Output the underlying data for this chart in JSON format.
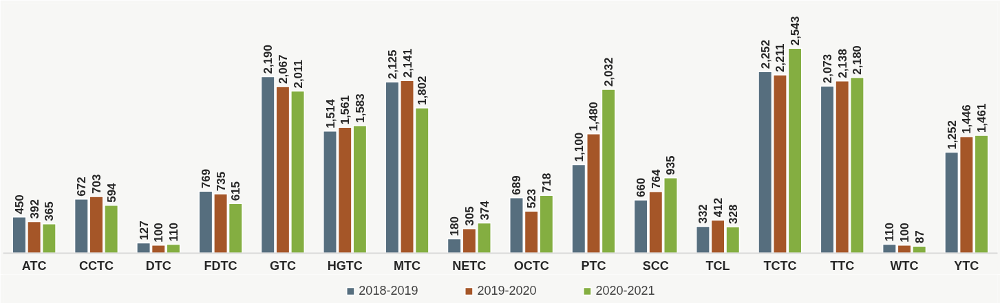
{
  "chart_data": {
    "type": "bar",
    "categories": [
      "ATC",
      "CCTC",
      "DTC",
      "FDTC",
      "GTC",
      "HGTC",
      "MTC",
      "NETC",
      "OCTC",
      "PTC",
      "SCC",
      "TCL",
      "TCTC",
      "TTC",
      "WTC",
      "YTC"
    ],
    "series": [
      {
        "name": "2018-2019",
        "color": "#566e7e",
        "values": [
          450,
          672,
          127,
          769,
          2190,
          1514,
          2125,
          180,
          689,
          1100,
          660,
          332,
          2252,
          2073,
          110,
          1252
        ],
        "value_labels": [
          "450",
          "672",
          "127",
          "769",
          "2,190",
          "1,514",
          "2,125",
          "180",
          "689",
          "1,100",
          "660",
          "332",
          "2,252",
          "2,073",
          "110",
          "1,252"
        ]
      },
      {
        "name": "2019-2020",
        "color": "#a55628",
        "values": [
          392,
          703,
          100,
          735,
          2067,
          1561,
          2141,
          305,
          523,
          1480,
          764,
          412,
          2211,
          2138,
          100,
          1446
        ],
        "value_labels": [
          "392",
          "703",
          "100",
          "735",
          "2,067",
          "1,561",
          "2,141",
          "305",
          "523",
          "1,480",
          "764",
          "412",
          "2,211",
          "2,138",
          "100",
          "1,446"
        ]
      },
      {
        "name": "2020-2021",
        "color": "#84ae41",
        "values": [
          365,
          594,
          110,
          615,
          2011,
          1583,
          1802,
          374,
          718,
          2032,
          935,
          328,
          2543,
          2180,
          87,
          1461
        ],
        "value_labels": [
          "365",
          "594",
          "110",
          "615",
          "2,011",
          "1,583",
          "1,802",
          "374",
          "718",
          "2,032",
          "935",
          "328",
          "2,543",
          "2,180",
          "87",
          "1,461"
        ]
      }
    ],
    "legend": "bottom"
  }
}
